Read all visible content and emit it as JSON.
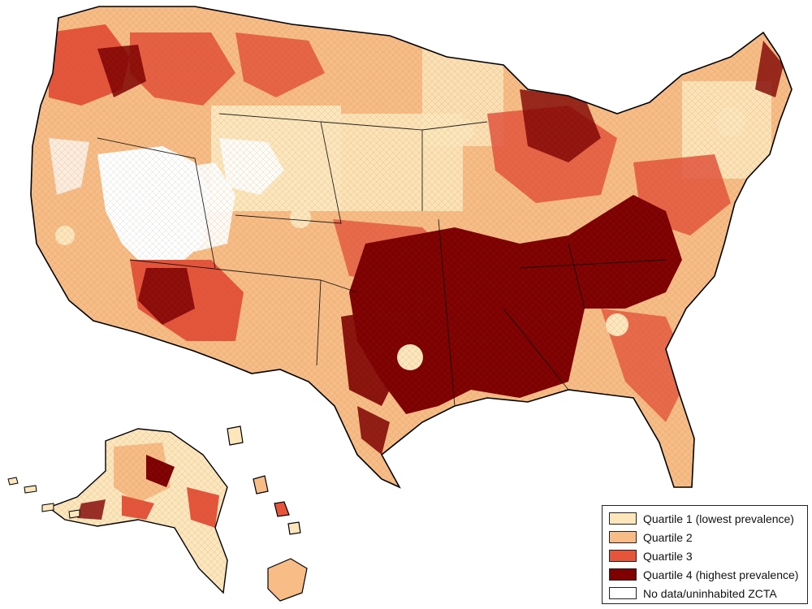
{
  "legend": {
    "items": [
      {
        "label": "Quartile 1 (lowest prevalence)",
        "color": "#fde6bb"
      },
      {
        "label": "Quartile 2",
        "color": "#f8bd86"
      },
      {
        "label": "Quartile 3",
        "color": "#e4553c"
      },
      {
        "label": "Quartile 4 (highest prevalence)",
        "color": "#7e0000"
      },
      {
        "label": "No data/uninhabited ZCTA",
        "color": "#ffffff"
      }
    ]
  },
  "map": {
    "regions": [
      "contiguous-us",
      "alaska",
      "hawaii"
    ],
    "border_color": "#000000"
  }
}
